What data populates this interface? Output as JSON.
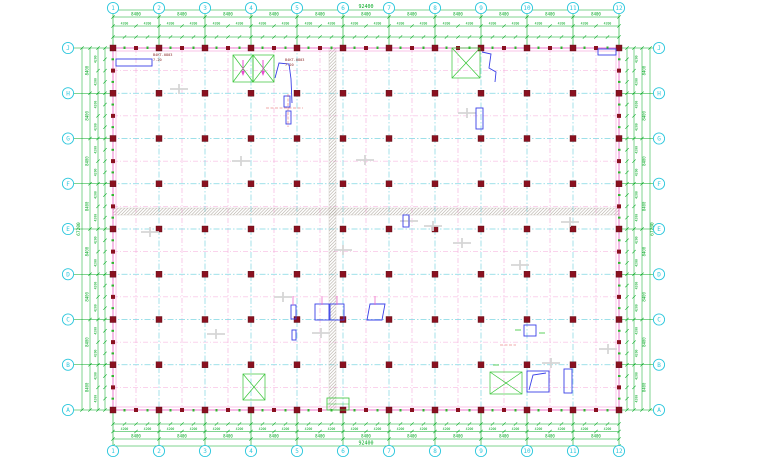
{
  "drawing": {
    "kind": "structural-column-layout-plan",
    "axis": {
      "top_numbers": [
        "1",
        "2",
        "3",
        "4",
        "5",
        "6",
        "7",
        "8",
        "9",
        "10",
        "11",
        "12"
      ],
      "bottom_numbers": [
        "1",
        "2",
        "3",
        "4",
        "5",
        "6",
        "7",
        "8",
        "9",
        "10",
        "11",
        "12"
      ],
      "left_letters": [
        "J",
        "H",
        "G",
        "F",
        "E",
        "D",
        "C",
        "B",
        "A"
      ],
      "right_letters": [
        "J",
        "H",
        "G",
        "F",
        "E",
        "D",
        "C",
        "B",
        "A"
      ]
    },
    "dimensions": {
      "total_width": "92400",
      "total_height": "67200",
      "bay_width": "8400",
      "half_bay_width": "4200",
      "bay_height": "8400",
      "half_bay_height": "4200"
    },
    "labels": [
      {
        "text": "B4KT-0803",
        "sub": "7.20"
      },
      {
        "text": "B4KT-0803",
        "sub": "7.20"
      }
    ]
  },
  "colors": {
    "dimension_green": "#00a820",
    "axis_bubble_cyan": "#2cc7dd",
    "grid_cyan": "#7fd6e2",
    "centerline_pink": "#f5a8da",
    "wall_magenta": "#ef6cc8",
    "column_red": "#8a1120",
    "detail_blue": "#3a41e8",
    "construction_gray": "#d6d6d6",
    "hatch_gray": "#a39b90",
    "label_dark_red": "#8b2a2a",
    "marker_red": "#e05555"
  }
}
